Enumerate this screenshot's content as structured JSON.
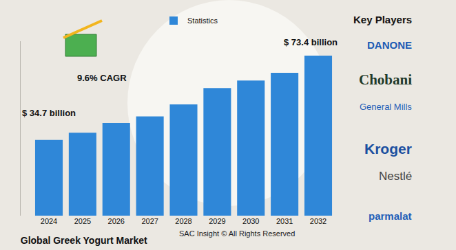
{
  "chart_data": {
    "type": "bar",
    "title": "Global Greek Yogurt Market",
    "source": "SAC Insight © All Rights Reserved",
    "categories": [
      "2024",
      "2025",
      "2026",
      "2027",
      "2028",
      "2029",
      "2030",
      "2031",
      "2032"
    ],
    "series": [
      {
        "name": "Statistics",
        "color": "#2f87d8",
        "values": [
          34.7,
          38.0,
          42.5,
          45.5,
          51.0,
          58.5,
          62.0,
          65.5,
          73.4
        ]
      }
    ],
    "annotations": [
      {
        "text": "$ 34.7 billion",
        "category": "2024"
      },
      {
        "text": "$ 73.4 billion",
        "category": "2032"
      }
    ],
    "cagr_label": "9.6% CAGR",
    "key_players": {
      "title": "Key Players",
      "companies": [
        "DANONE",
        "Chobani",
        "General Mills",
        "Kroger",
        "Nestlé",
        "parmalat"
      ]
    },
    "ylim": [
      0,
      80
    ],
    "legend": "top",
    "grid": false,
    "tick_labels": "x"
  }
}
